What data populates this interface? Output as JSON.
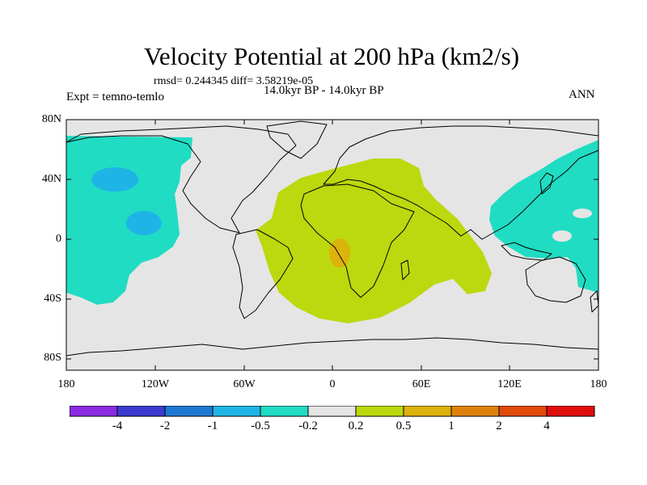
{
  "title": "Velocity Potential at 200 hPa (km2/s)",
  "stats": {
    "rmsd_text": "rmsd= 0.244345  diff= 3.58219e-05"
  },
  "experiment": "Expt = temno-temlo",
  "period": "14.0kyr BP - 14.0kyr BP",
  "season": "ANN",
  "y_ticks": [
    "80N",
    "40N",
    "0",
    "40S",
    "80S"
  ],
  "x_ticks": [
    "180",
    "120W",
    "60W",
    "0",
    "60E",
    "120E",
    "180"
  ],
  "colorbar": {
    "colors": [
      "#8a2be2",
      "#3a3acf",
      "#1e78d2",
      "#1fb4e6",
      "#20dcc3",
      "#e5e5e5",
      "#bcd80e",
      "#dcb30a",
      "#de8209",
      "#e04a0a",
      "#e00d0d"
    ],
    "labels": [
      "-4",
      "-2",
      "-1",
      "-0.5",
      "-0.2",
      "0.2",
      "0.5",
      "1",
      "2",
      "4"
    ]
  },
  "anomaly_regions": [
    {
      "name": "pacific-negative-region",
      "value_class": "-0.5 to -0.2",
      "color": "#20dcc3"
    },
    {
      "name": "pacific-inner-negative-north",
      "value_class": "-1 to -0.5",
      "color": "#1fb4e6"
    },
    {
      "name": "pacific-inner-negative-south",
      "value_class": "-1 to -0.5",
      "color": "#1fb4e6"
    },
    {
      "name": "africa-positive-region",
      "value_class": "0.2 to 0.5",
      "color": "#bcd80e"
    },
    {
      "name": "congo-positive-core",
      "value_class": "0.5 to 1",
      "color": "#dcb30a"
    },
    {
      "name": "west-pacific-negative-region",
      "value_class": "-0.5 to -0.2",
      "color": "#20dcc3"
    }
  ]
}
